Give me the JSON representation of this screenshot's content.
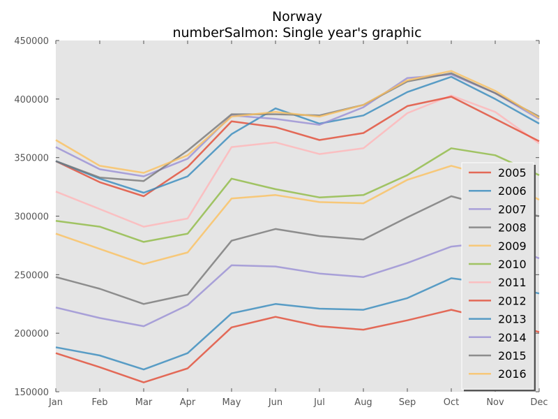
{
  "chart_data": {
    "type": "line",
    "title": "Norway",
    "subtitle": "numberSalmon: Single year's graphic",
    "xlabel": "",
    "ylabel": "",
    "categories": [
      "Jan",
      "Feb",
      "Mar",
      "Apr",
      "May",
      "Jun",
      "Jul",
      "Aug",
      "Sep",
      "Oct",
      "Nov",
      "Dec"
    ],
    "y_ticks": [
      "150000",
      "200000",
      "250000",
      "300000",
      "350000",
      "400000",
      "450000"
    ],
    "ylim": [
      150000,
      450000
    ],
    "grid": false,
    "legend_position": "lower-right",
    "background": "#e5e5e5",
    "series": [
      {
        "name": "2005",
        "color": "#e24a33",
        "values": [
          183000,
          171000,
          158000,
          170000,
          205000,
          214000,
          206000,
          203000,
          211000,
          220000,
          211000,
          201000
        ]
      },
      {
        "name": "2006",
        "color": "#348abd",
        "values": [
          188000,
          181000,
          169000,
          183000,
          217000,
          225000,
          221000,
          220000,
          230000,
          247000,
          242000,
          234000
        ]
      },
      {
        "name": "2007",
        "color": "#988ed5",
        "values": [
          222000,
          213000,
          206000,
          224000,
          258000,
          257000,
          251000,
          248000,
          260000,
          274000,
          278000,
          264000
        ]
      },
      {
        "name": "2008",
        "color": "#777777",
        "values": [
          248000,
          238000,
          225000,
          233000,
          279000,
          289000,
          283000,
          280000,
          299000,
          317000,
          307000,
          300000
        ]
      },
      {
        "name": "2009",
        "color": "#fbc15e",
        "values": [
          285000,
          272000,
          259000,
          269000,
          315000,
          318000,
          312000,
          311000,
          331000,
          343000,
          333000,
          314000
        ]
      },
      {
        "name": "2010",
        "color": "#8eba42",
        "values": [
          296000,
          291000,
          278000,
          285000,
          332000,
          323000,
          316000,
          318000,
          335000,
          358000,
          352000,
          335000
        ]
      },
      {
        "name": "2011",
        "color": "#ffb5b8",
        "values": [
          321000,
          306000,
          291000,
          298000,
          359000,
          363000,
          353000,
          358000,
          388000,
          403000,
          389000,
          362000
        ]
      },
      {
        "name": "2012",
        "color": "#e24a33",
        "values": [
          347000,
          329000,
          317000,
          342000,
          381000,
          376000,
          365000,
          371000,
          394000,
          402000,
          383000,
          364000
        ]
      },
      {
        "name": "2013",
        "color": "#348abd",
        "values": [
          347000,
          332000,
          320000,
          334000,
          370000,
          392000,
          379000,
          386000,
          406000,
          419000,
          400000,
          379000
        ]
      },
      {
        "name": "2014",
        "color": "#988ed5",
        "values": [
          359000,
          340000,
          334000,
          349000,
          386000,
          383000,
          378000,
          393000,
          418000,
          421000,
          405000,
          383000
        ]
      },
      {
        "name": "2015",
        "color": "#777777",
        "values": [
          347000,
          333000,
          330000,
          356000,
          387000,
          387000,
          386000,
          395000,
          415000,
          422000,
          405000,
          385000
        ]
      },
      {
        "name": "2016",
        "color": "#fbc15e",
        "values": [
          365000,
          343000,
          337000,
          352000,
          385000,
          389000,
          385000,
          395000,
          416000,
          424000,
          407000,
          384000
        ]
      }
    ]
  }
}
